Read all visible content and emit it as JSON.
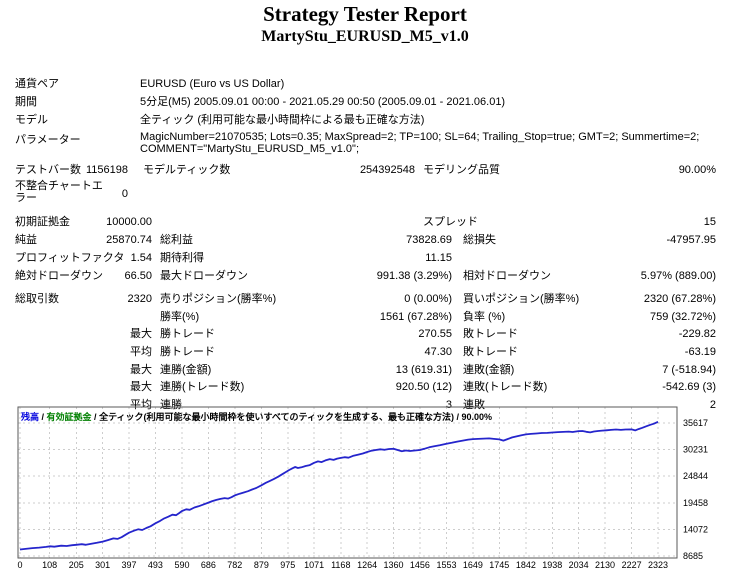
{
  "header": {
    "title": "Strategy Tester Report",
    "subtitle": "MartyStu_EURUSD_M5_v1.0"
  },
  "colors": {
    "balance_line": "#2525cc",
    "legend_balance": "#0000dd",
    "legend_equity": "#008000",
    "grid": "#cdcdcd",
    "chart_border": "#5a5a5a",
    "text": "#000000"
  },
  "table": {
    "info_rows": [
      {
        "label": "通貨ペア",
        "value": "EURUSD (Euro vs US Dollar)"
      },
      {
        "label": "期間",
        "value": "5分足(M5) 2005.09.01 00:00 - 2021.05.29 00:50 (2005.09.01 - 2021.06.01)"
      },
      {
        "label": "モデル",
        "value": "全ティック (利用可能な最小時間枠による最も正確な方法)"
      },
      {
        "label": "パラメーター",
        "value": "MagicNumber=21070535; Lots=0.35; MaxSpread=2; TP=100; SL=64; Trailing_Stop=true; GMT=2; Summertime=2; COMMENT=\"MartyStu_EURUSD_M5_v1.0\";",
        "multiline": true
      }
    ],
    "sections": [
      {
        "name": "model",
        "variant": "tight",
        "rows": [
          {
            "label": "テストバー数",
            "value": "1156198",
            "label2": "モデルティック数",
            "value2": "254392548",
            "label3": "モデリング品質",
            "value3": "90.00%"
          },
          {
            "label": "不整合チャートエラー",
            "value": "0",
            "tall": true
          }
        ]
      },
      {
        "name": "finance",
        "variant": "normal",
        "rows": [
          {
            "label": "初期証拠金",
            "value": "10000.00",
            "label3": "スプレッド",
            "value3": "15",
            "tight3": true
          },
          {
            "label": "純益",
            "value": "25870.74",
            "label2": "総利益",
            "value2": "73828.69",
            "label3": "総損失",
            "value3": "-47957.95"
          },
          {
            "label": "プロフィットファクタ",
            "value": "1.54",
            "label2": "期待利得",
            "value2": "11.15"
          },
          {
            "label": "絶対ドローダウン",
            "value": "66.50",
            "label2": "最大ドローダウン",
            "value2": "991.38 (3.29%)",
            "label3": "相対ドローダウン",
            "value3": "5.97% (889.00)"
          }
        ]
      },
      {
        "name": "trades",
        "variant": "normal",
        "rows": [
          {
            "label": "総取引数",
            "value": "2320",
            "label2": "売りポジション(勝率%)",
            "value2": "0 (0.00%)",
            "label3": "買いポジション(勝率%)",
            "value3": "2320 (67.28%)"
          },
          {
            "label2": "勝率(%)",
            "value2": "1561 (67.28%)",
            "label3": "負率 (%)",
            "value3": "759 (32.72%)"
          },
          {
            "qualifier": "最大",
            "label2": "勝トレード",
            "value2": "270.55",
            "label3": "敗トレード",
            "value3": "-229.82"
          },
          {
            "qualifier": "平均",
            "label2": "勝トレード",
            "value2": "47.30",
            "label3": "敗トレード",
            "value3": "-63.19"
          },
          {
            "qualifier": "最大",
            "label2": "連勝(金額)",
            "value2": "13 (619.31)",
            "label3": "連敗(金額)",
            "value3": "7 (-518.94)"
          },
          {
            "qualifier": "最大",
            "label2": "連勝(トレード数)",
            "value2": "920.50 (12)",
            "label3": "連敗(トレード数)",
            "value3": "-542.69 (3)"
          },
          {
            "qualifier": "平均",
            "label2": "連勝",
            "value2": "3",
            "label3": "連敗",
            "value3": "2"
          }
        ]
      }
    ]
  },
  "chart_data": {
    "type": "line",
    "title": "",
    "xlabel": "",
    "ylabel": "",
    "grid": true,
    "legend_position": "top-left",
    "legend": {
      "balance": "残高",
      "equity": "有効証拠金",
      "model": "全ティック(利用可能な最小時間枠を使いすべてのティックを生成する、最も正確な方法)",
      "quality": "90.00%"
    },
    "x_ticks": [
      0,
      108,
      205,
      301,
      397,
      493,
      590,
      686,
      782,
      879,
      975,
      1071,
      1168,
      1264,
      1360,
      1456,
      1553,
      1649,
      1745,
      1842,
      1938,
      2034,
      2130,
      2227,
      2323
    ],
    "y_ticks": [
      35617,
      30231,
      24844,
      19458,
      14072,
      8685
    ],
    "x_range": [
      0,
      2350
    ],
    "y_range": [
      8685,
      35870
    ],
    "series": [
      {
        "name": "残高",
        "points": [
          [
            0,
            10000
          ],
          [
            20,
            10120
          ],
          [
            45,
            10280
          ],
          [
            70,
            10380
          ],
          [
            95,
            10520
          ],
          [
            110,
            10650
          ],
          [
            125,
            10570
          ],
          [
            150,
            10780
          ],
          [
            170,
            10700
          ],
          [
            190,
            10880
          ],
          [
            205,
            10950
          ],
          [
            225,
            11080
          ],
          [
            240,
            10960
          ],
          [
            260,
            11150
          ],
          [
            280,
            11350
          ],
          [
            301,
            11600
          ],
          [
            320,
            11900
          ],
          [
            340,
            12250
          ],
          [
            355,
            12150
          ],
          [
            370,
            12500
          ],
          [
            385,
            13000
          ],
          [
            397,
            13400
          ],
          [
            415,
            13800
          ],
          [
            430,
            14100
          ],
          [
            445,
            13950
          ],
          [
            460,
            14350
          ],
          [
            475,
            14700
          ],
          [
            493,
            15300
          ],
          [
            510,
            15800
          ],
          [
            525,
            16300
          ],
          [
            540,
            16650
          ],
          [
            555,
            17050
          ],
          [
            568,
            16950
          ],
          [
            580,
            17400
          ],
          [
            590,
            17800
          ],
          [
            605,
            18150
          ],
          [
            618,
            18050
          ],
          [
            635,
            18500
          ],
          [
            650,
            18750
          ],
          [
            665,
            19050
          ],
          [
            686,
            19500
          ],
          [
            700,
            19800
          ],
          [
            715,
            20050
          ],
          [
            730,
            20250
          ],
          [
            745,
            20400
          ],
          [
            758,
            20300
          ],
          [
            770,
            20600
          ],
          [
            782,
            20950
          ],
          [
            800,
            21300
          ],
          [
            815,
            21550
          ],
          [
            830,
            21800
          ],
          [
            845,
            22150
          ],
          [
            860,
            22450
          ],
          [
            879,
            23000
          ],
          [
            895,
            23500
          ],
          [
            910,
            23900
          ],
          [
            925,
            24300
          ],
          [
            940,
            24750
          ],
          [
            955,
            25250
          ],
          [
            968,
            25700
          ],
          [
            980,
            26100
          ],
          [
            992,
            26450
          ],
          [
            1002,
            26700
          ],
          [
            1012,
            26500
          ],
          [
            1025,
            26650
          ],
          [
            1040,
            26900
          ],
          [
            1055,
            27100
          ],
          [
            1071,
            27550
          ],
          [
            1085,
            27850
          ],
          [
            1098,
            27700
          ],
          [
            1112,
            28050
          ],
          [
            1128,
            28300
          ],
          [
            1142,
            28150
          ],
          [
            1155,
            28400
          ],
          [
            1168,
            28550
          ],
          [
            1182,
            28700
          ],
          [
            1196,
            28600
          ],
          [
            1212,
            28950
          ],
          [
            1230,
            29200
          ],
          [
            1248,
            29450
          ],
          [
            1264,
            29750
          ],
          [
            1280,
            30000
          ],
          [
            1295,
            30150
          ],
          [
            1312,
            30300
          ],
          [
            1328,
            30200
          ],
          [
            1344,
            30350
          ],
          [
            1360,
            30400
          ],
          [
            1375,
            30150
          ],
          [
            1390,
            29900
          ],
          [
            1405,
            30050
          ],
          [
            1420,
            29950
          ],
          [
            1438,
            30050
          ],
          [
            1456,
            30150
          ],
          [
            1472,
            30400
          ],
          [
            1490,
            30700
          ],
          [
            1508,
            30900
          ],
          [
            1528,
            31100
          ],
          [
            1553,
            31400
          ],
          [
            1572,
            31600
          ],
          [
            1592,
            31850
          ],
          [
            1612,
            32050
          ],
          [
            1632,
            32250
          ],
          [
            1649,
            32350
          ],
          [
            1668,
            32400
          ],
          [
            1688,
            32450
          ],
          [
            1708,
            32500
          ],
          [
            1725,
            32400
          ],
          [
            1745,
            32300
          ],
          [
            1760,
            32050
          ],
          [
            1775,
            32350
          ],
          [
            1792,
            32700
          ],
          [
            1810,
            32950
          ],
          [
            1826,
            33150
          ],
          [
            1842,
            33300
          ],
          [
            1860,
            33400
          ],
          [
            1880,
            33500
          ],
          [
            1900,
            33600
          ],
          [
            1920,
            33620
          ],
          [
            1938,
            33700
          ],
          [
            1958,
            33780
          ],
          [
            1978,
            33820
          ],
          [
            1998,
            33880
          ],
          [
            2012,
            33800
          ],
          [
            2034,
            33980
          ],
          [
            2048,
            34000
          ],
          [
            2062,
            33830
          ],
          [
            2076,
            33720
          ],
          [
            2090,
            33900
          ],
          [
            2105,
            34000
          ],
          [
            2120,
            34080
          ],
          [
            2135,
            34130
          ],
          [
            2152,
            34220
          ],
          [
            2170,
            34300
          ],
          [
            2188,
            34220
          ],
          [
            2205,
            34300
          ],
          [
            2227,
            34320
          ],
          [
            2240,
            34120
          ],
          [
            2252,
            34380
          ],
          [
            2266,
            34650
          ],
          [
            2280,
            34950
          ],
          [
            2295,
            35250
          ],
          [
            2308,
            35480
          ],
          [
            2323,
            35870
          ]
        ]
      }
    ]
  }
}
